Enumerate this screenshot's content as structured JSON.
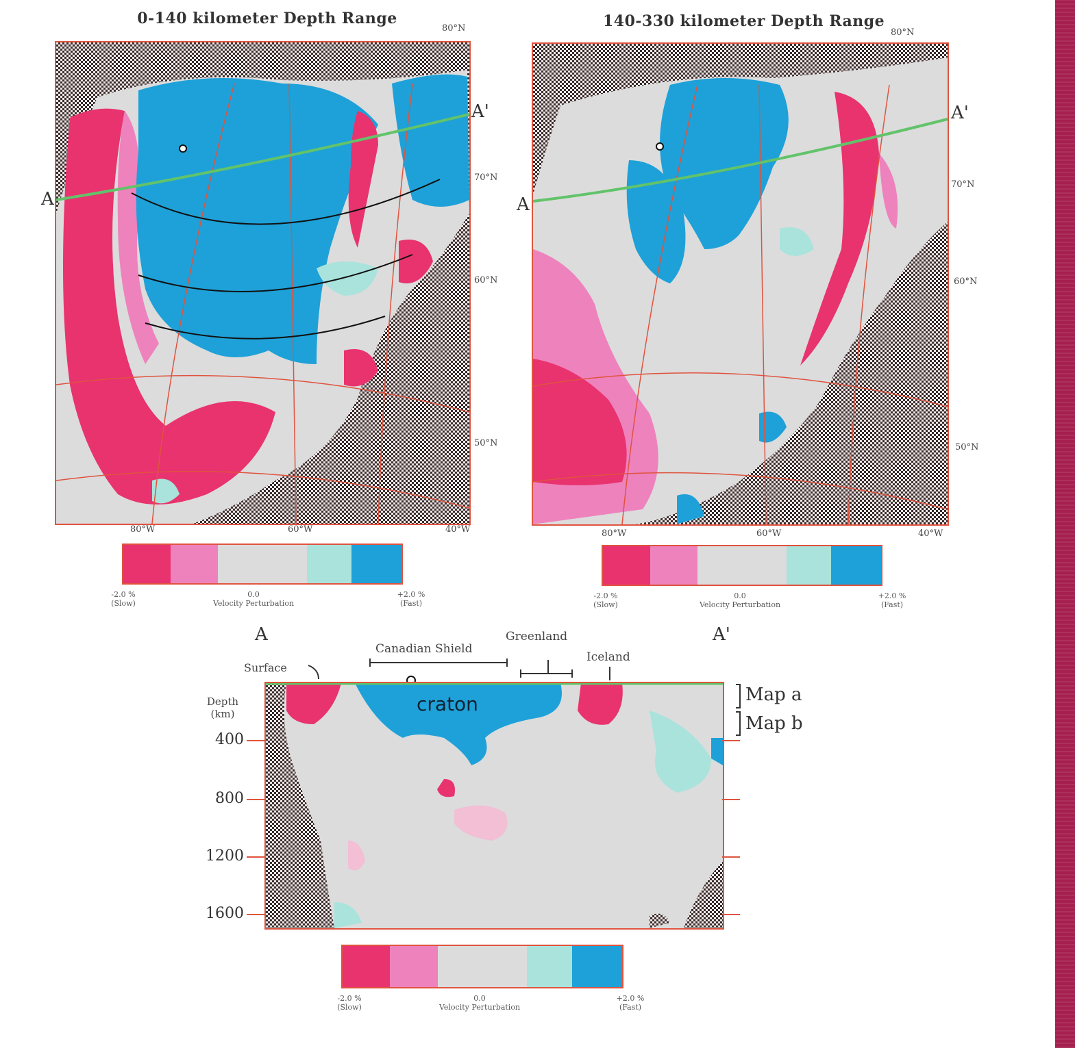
{
  "map_a": {
    "title": "0-140 kilometer Depth Range",
    "endpoint_left": "A",
    "endpoint_right": "A'",
    "lon_labels": [
      "80°W",
      "60°W",
      "40°W"
    ],
    "lat_labels": [
      "80°N",
      "70°N",
      "60°N",
      "50°N"
    ]
  },
  "map_b": {
    "title": "140-330 kilometer Depth Range",
    "endpoint_left": "A",
    "endpoint_right": "A'",
    "lon_labels": [
      "80°W",
      "60°W",
      "40°W"
    ],
    "lat_labels": [
      "80°N",
      "70°N",
      "60°N",
      "50°N"
    ]
  },
  "colorbar": {
    "colors": [
      "#e8336f",
      "#ee82bd",
      "#dcdcdc",
      "#dcdcdc",
      "#a9e3dc",
      "#1ea1d8"
    ],
    "left_label_line1": "-2.0 %",
    "left_label_line2": "(Slow)",
    "center_label_line1": "0.0",
    "center_label_line2": "Velocity Perturbation",
    "right_label_line1": "+2.0 %",
    "right_label_line2": "(Fast)"
  },
  "cross_section": {
    "endpoint_left": "A",
    "endpoint_right": "A'",
    "depth_axis_title_line1": "Depth",
    "depth_axis_title_line2": "(km)",
    "depth_ticks": [
      "400",
      "800",
      "1200",
      "1600"
    ],
    "region_labels": {
      "surface_left": "Surface",
      "canadian_shield": "Canadian Shield",
      "greenland": "Greenland",
      "iceland": "Iceland",
      "craton": "craton"
    },
    "map_refs": [
      "Map a",
      "Map b"
    ]
  }
}
